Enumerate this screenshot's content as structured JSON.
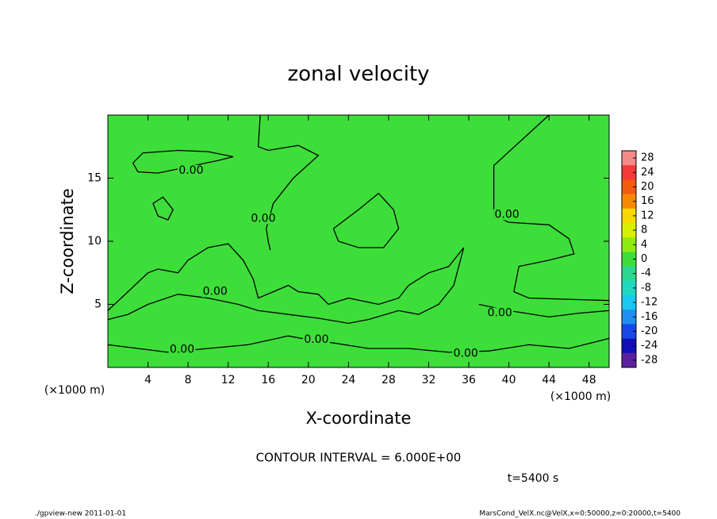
{
  "chart_data": {
    "type": "contour",
    "title": "zonal velocity",
    "xlabel": "X-coordinate",
    "ylabel": "Z-coordinate",
    "xunit": "(×1000 m)",
    "yunit": "(×1000 m)",
    "xlim": [
      0,
      50
    ],
    "ylim": [
      0,
      20
    ],
    "xticks": [
      4,
      8,
      12,
      16,
      20,
      24,
      28,
      32,
      36,
      40,
      44,
      48
    ],
    "yticks": [
      5,
      10,
      15
    ],
    "field_color": "#3ede3a",
    "line_color": "#000000",
    "contours": [
      {
        "x": [
          2.5,
          3.5,
          7,
          10,
          12.5,
          11,
          8,
          5,
          3,
          2.5
        ],
        "y": [
          16.2,
          17.0,
          17.2,
          17.1,
          16.7,
          16.4,
          15.9,
          15.4,
          15.5,
          16.2
        ]
      },
      {
        "x": [
          15.2,
          15.0,
          16,
          19,
          21,
          18.5,
          16.5,
          15.8,
          16,
          16.2
        ],
        "y": [
          20,
          17.5,
          17.2,
          17.6,
          16.8,
          15,
          13,
          11,
          10,
          9.3
        ]
      },
      {
        "x": [
          44,
          38.5,
          38.5,
          40,
          44,
          46,
          46.5,
          44,
          41,
          40.5,
          42,
          50
        ],
        "y": [
          20,
          16,
          12,
          11.5,
          11.3,
          10.2,
          9,
          8.5,
          8,
          6,
          5.5,
          5.3
        ]
      },
      {
        "x": [
          22.5,
          25,
          27,
          28.5,
          29,
          27.5,
          25,
          23,
          22.5
        ],
        "y": [
          11,
          12.5,
          13.8,
          12.5,
          11,
          9.5,
          9.5,
          10,
          11
        ]
      },
      {
        "x": [
          4.5,
          5.5,
          6.5,
          6,
          5,
          4.5
        ],
        "y": [
          13,
          13.5,
          12.5,
          11.7,
          12,
          13
        ]
      },
      {
        "x": [
          0,
          2,
          4,
          5,
          7,
          8,
          10,
          12,
          13.5,
          14.5,
          15,
          16.5,
          18,
          19,
          21,
          22,
          24,
          27,
          29,
          30,
          32,
          34,
          35.5,
          34.5,
          33,
          31,
          29,
          26,
          24,
          21,
          18,
          15,
          13,
          10,
          7,
          4,
          2,
          0
        ],
        "y": [
          4.5,
          6,
          7.5,
          7.8,
          7.5,
          8.5,
          9.5,
          9.8,
          8.5,
          7,
          5.5,
          6,
          6.5,
          6,
          5.8,
          5,
          5.5,
          5,
          5.5,
          6.5,
          7.5,
          8,
          9.5,
          6.5,
          5,
          4.2,
          4.5,
          3.8,
          3.5,
          3.9,
          4.2,
          4.5,
          5,
          5.5,
          5.8,
          5,
          4.2,
          3.8
        ]
      },
      {
        "x": [
          0,
          3,
          6,
          10,
          14,
          18,
          20,
          22,
          26,
          30,
          34,
          38,
          42,
          46,
          50
        ],
        "y": [
          1.8,
          1.5,
          1.2,
          1.5,
          1.8,
          2.5,
          2.2,
          2,
          1.5,
          1.5,
          1.2,
          1.3,
          1.8,
          1.5,
          2.3
        ]
      },
      {
        "x": [
          37,
          40,
          44,
          47,
          50
        ],
        "y": [
          5,
          4.5,
          4,
          4.3,
          4.5
        ]
      }
    ],
    "contour_labels": [
      {
        "label": "0.00",
        "x": 8.3,
        "y": 15.6
      },
      {
        "label": "0.00",
        "x": 15.5,
        "y": 11.8
      },
      {
        "label": "0.00",
        "x": 39.8,
        "y": 12.1
      },
      {
        "label": "0.00",
        "x": 10.7,
        "y": 6.0
      },
      {
        "label": "0.00",
        "x": 39.1,
        "y": 4.3
      },
      {
        "label": "0.00",
        "x": 20.8,
        "y": 2.2
      },
      {
        "label": "0.00",
        "x": 7.4,
        "y": 1.4
      },
      {
        "label": "0.00",
        "x": 35.7,
        "y": 1.1
      }
    ],
    "colorbar": {
      "lim": [
        -30,
        30
      ],
      "ticks": [
        28,
        24,
        20,
        16,
        12,
        8,
        4,
        0,
        -4,
        -8,
        -12,
        -16,
        -20,
        -24,
        -28
      ],
      "colors": [
        "#f48a8a",
        "#f43a3a",
        "#f45a10",
        "#f88a00",
        "#f8d800",
        "#d8f000",
        "#90ec10",
        "#3ede3a",
        "#2cd890",
        "#20d8c0",
        "#18c8f0",
        "#2090f0",
        "#1848e8",
        "#1010b8",
        "#5a20a0"
      ]
    },
    "contour_interval": "CONTOUR INTERVAL = 6.000E+00",
    "time": "t=5400 s",
    "footer_left": "./gpview-new  2011-01-01",
    "footer_right": "MarsCond_VelX.nc@VelX,x=0:50000,z=0:20000,t=5400"
  }
}
